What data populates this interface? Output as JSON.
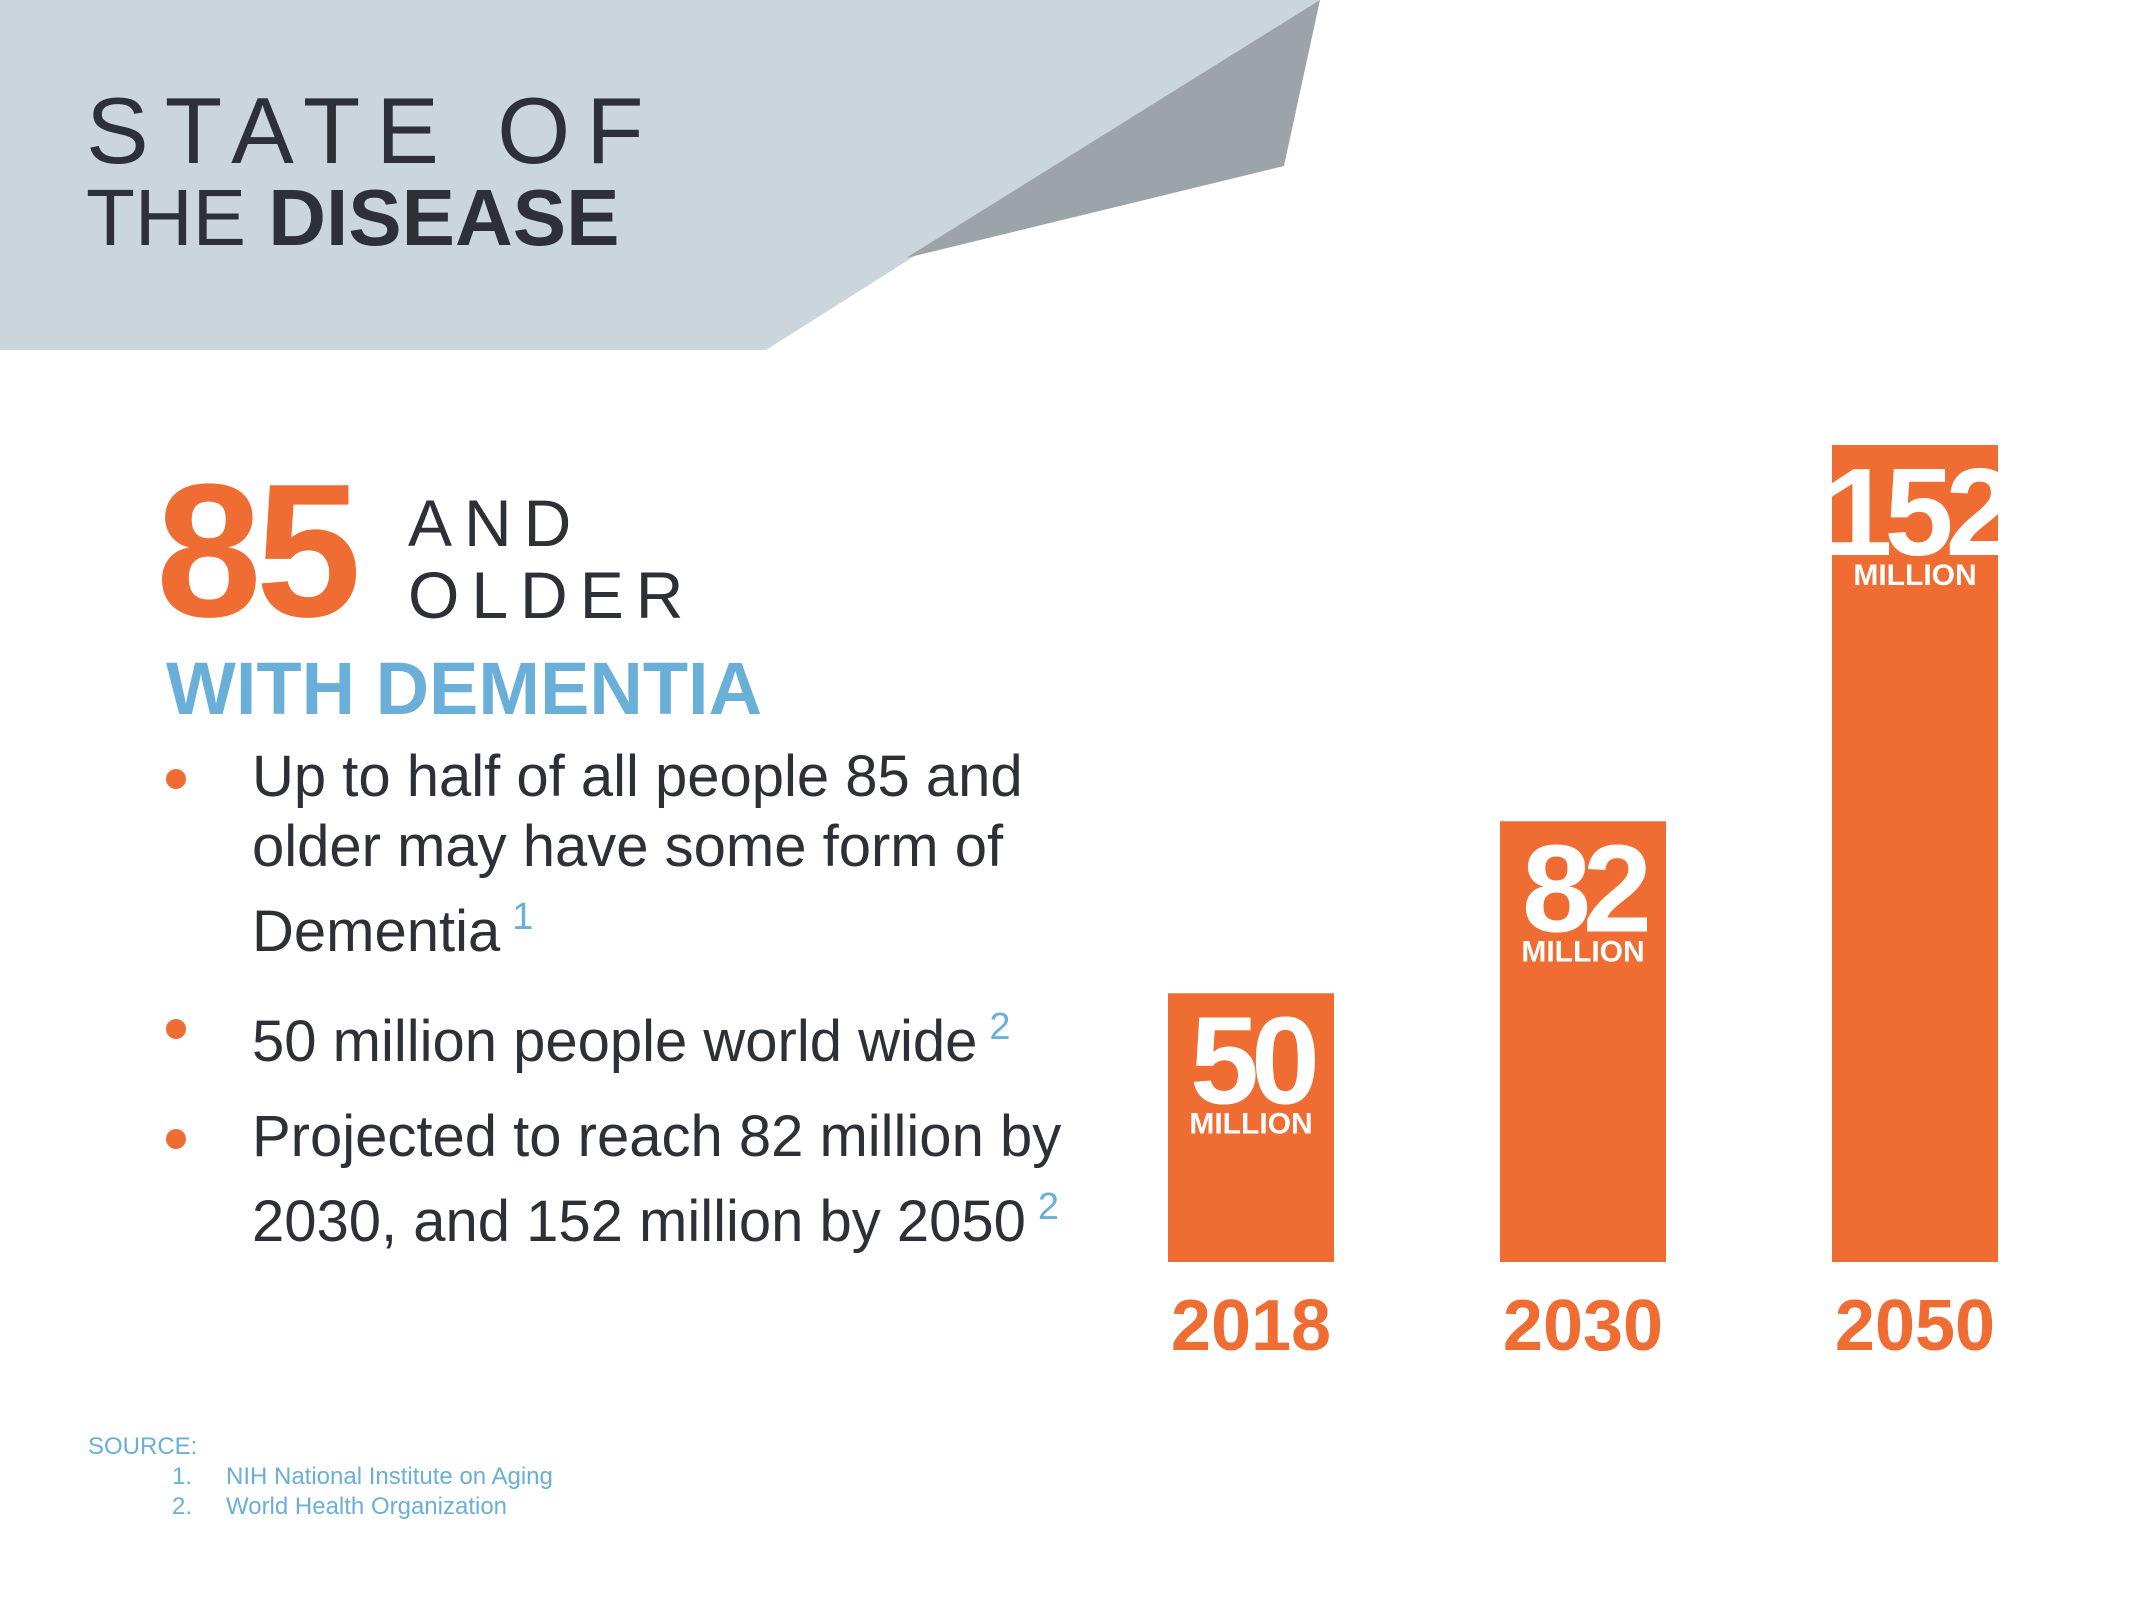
{
  "title": {
    "line1": "STATE OF",
    "line2_regular": "THE ",
    "line2_bold": "DISEASE"
  },
  "stat": {
    "number": "85",
    "line1": "AND",
    "line2": "OLDER",
    "subtitle": "WITH DEMENTIA"
  },
  "bullets": [
    {
      "text": "Up to half of all people 85 and older may have some form of Dementia",
      "ref": "1"
    },
    {
      "text": "50 million people world wide",
      "ref": "2"
    },
    {
      "text": "Projected to reach 82 million by 2030, and 152 million by 2050",
      "ref": "2"
    }
  ],
  "source": {
    "label": "SOURCE:",
    "items": [
      {
        "num": "1.",
        "text": "NIH National Institute on Aging"
      },
      {
        "num": "2.",
        "text": "World Health Organization"
      }
    ]
  },
  "colors": {
    "orange": "#ef6d33",
    "blue": "#6aafd8",
    "dark": "#2e3038",
    "header_light": "#cbd6dc",
    "header_dark": "#9da4a9"
  },
  "chart_data": {
    "type": "bar",
    "categories": [
      "2018",
      "2030",
      "2050"
    ],
    "values": [
      50,
      82,
      152
    ],
    "value_labels": [
      "50",
      "82",
      "152"
    ],
    "unit_label": "MILLION",
    "ylim": [
      0,
      152
    ],
    "title": "",
    "xlabel": "",
    "ylabel": ""
  }
}
